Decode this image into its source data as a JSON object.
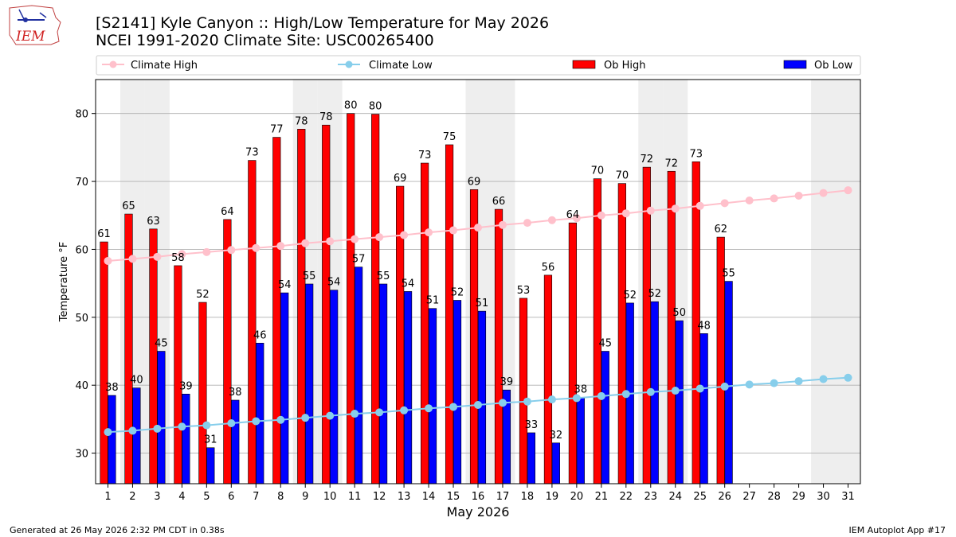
{
  "title_line1": "[S2141] Kyle Canyon :: High/Low Temperature for May 2026",
  "title_line2": "NCEI 1991-2020 Climate Site: USC00265400",
  "logo_text": "IEM",
  "footer_left": "Generated at 26 May 2026 2:32 PM CDT in 0.38s",
  "footer_right": "IEM Autoplot App #17",
  "colors": {
    "ob_high": "#ff0000",
    "ob_low": "#0000ff",
    "climate_high": "#ffc0cb",
    "climate_low": "#87ceeb",
    "weekend_band": "#eeeeee",
    "grid": "#b0b0b0"
  },
  "chart_data": {
    "type": "bar",
    "xlabel": "May 2026",
    "ylabel": "Temperature °F",
    "ylim": [
      25.5,
      85
    ],
    "yticks": [
      30,
      40,
      50,
      60,
      70,
      80
    ],
    "grid": "horizontal",
    "legend_position": "top",
    "categories": [
      "1",
      "2",
      "3",
      "4",
      "5",
      "6",
      "7",
      "8",
      "9",
      "10",
      "11",
      "12",
      "13",
      "14",
      "15",
      "16",
      "17",
      "18",
      "19",
      "20",
      "21",
      "22",
      "23",
      "24",
      "25",
      "26",
      "27",
      "28",
      "29",
      "30",
      "31"
    ],
    "shaded_days": [
      2,
      3,
      9,
      10,
      16,
      17,
      23,
      24,
      30,
      31
    ],
    "series": [
      {
        "name": "Climate High",
        "kind": "line",
        "values": [
          58.3,
          58.6,
          58.9,
          59.3,
          59.6,
          59.9,
          60.2,
          60.5,
          60.9,
          61.2,
          61.5,
          61.8,
          62.1,
          62.5,
          62.8,
          63.2,
          63.6,
          63.9,
          64.3,
          64.6,
          65.0,
          65.3,
          65.7,
          66.0,
          66.4,
          66.8,
          67.2,
          67.5,
          67.9,
          68.3,
          68.7
        ]
      },
      {
        "name": "Climate Low",
        "kind": "line",
        "values": [
          33.1,
          33.3,
          33.6,
          33.9,
          34.1,
          34.4,
          34.7,
          34.9,
          35.2,
          35.5,
          35.8,
          36.0,
          36.3,
          36.6,
          36.8,
          37.1,
          37.4,
          37.6,
          37.9,
          38.1,
          38.4,
          38.7,
          39.0,
          39.2,
          39.5,
          39.8,
          40.1,
          40.3,
          40.6,
          40.9,
          41.1
        ]
      },
      {
        "name": "Ob High",
        "kind": "bar",
        "values": [
          61.1,
          65.2,
          63.0,
          57.6,
          52.2,
          64.4,
          73.1,
          76.5,
          77.7,
          78.3,
          80.0,
          79.9,
          69.3,
          72.7,
          75.4,
          68.8,
          65.9,
          52.8,
          56.2,
          63.9,
          70.4,
          69.7,
          72.1,
          71.5,
          72.9,
          61.8,
          null,
          null,
          null,
          null,
          null
        ],
        "labels": [
          "61",
          "65",
          "63",
          "58",
          "52",
          "64",
          "73",
          "77",
          "78",
          "78",
          "80",
          "80",
          "69",
          "73",
          "75",
          "69",
          "66",
          "53",
          "56",
          "64",
          "70",
          "70",
          "72",
          "72",
          "73",
          "62",
          "",
          "",
          "",
          "",
          ""
        ]
      },
      {
        "name": "Ob Low",
        "kind": "bar",
        "values": [
          38.5,
          39.6,
          45.0,
          38.7,
          30.8,
          37.8,
          46.2,
          53.6,
          54.9,
          54.0,
          57.4,
          54.9,
          53.8,
          51.3,
          52.5,
          50.9,
          39.3,
          33.0,
          31.5,
          38.2,
          45.0,
          52.1,
          52.3,
          49.5,
          47.6,
          55.3,
          null,
          null,
          null,
          null,
          null
        ],
        "labels": [
          "38",
          "40",
          "45",
          "39",
          "31",
          "38",
          "46",
          "54",
          "55",
          "54",
          "57",
          "55",
          "54",
          "51",
          "52",
          "51",
          "39",
          "33",
          "32",
          "38",
          "45",
          "52",
          "52",
          "50",
          "48",
          "55",
          "",
          "",
          "",
          "",
          ""
        ]
      }
    ]
  }
}
